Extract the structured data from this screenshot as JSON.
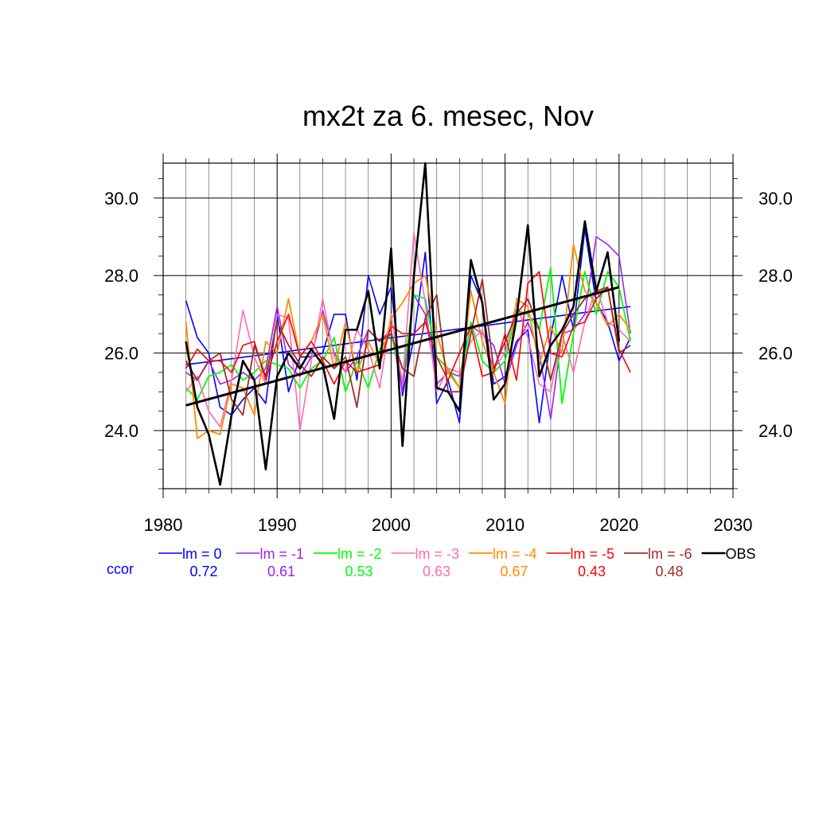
{
  "chart_data": {
    "type": "line",
    "title": "mx2t za 6. mesec, Nov",
    "xlim": [
      1980,
      2030
    ],
    "ylim": [
      22.5,
      30.9
    ],
    "x_ticks": [
      1980,
      1990,
      2000,
      2010,
      2020,
      2030
    ],
    "y_ticks": [
      24.0,
      26.0,
      28.0,
      30.0
    ],
    "y_tick_labels": [
      "24.0",
      "26.0",
      "28.0",
      "30.0"
    ],
    "x_tick_labels": [
      "1980",
      "1990",
      "2000",
      "2010",
      "2020",
      "2030"
    ],
    "x_minor_step": 2,
    "y_minor_step": 0.5,
    "grid": true,
    "legend_position": "bottom",
    "ccor_label": "ccor",
    "years": [
      1982,
      1983,
      1984,
      1985,
      1986,
      1987,
      1988,
      1989,
      1990,
      1991,
      1992,
      1993,
      1994,
      1995,
      1996,
      1997,
      1998,
      1999,
      2000,
      2001,
      2002,
      2003,
      2004,
      2005,
      2006,
      2007,
      2008,
      2009,
      2010,
      2011,
      2012,
      2013,
      2014,
      2015,
      2016,
      2017,
      2018,
      2019,
      2020,
      2021
    ],
    "series": [
      {
        "name": "lm = 0",
        "color": "#0000ff",
        "width": 1.6,
        "ccor": "0.72",
        "values": [
          27.35,
          26.4,
          26.0,
          24.6,
          24.4,
          24.8,
          25.1,
          24.7,
          27.0,
          25.0,
          25.9,
          25.9,
          26.0,
          27.0,
          27.0,
          25.3,
          28.0,
          27.0,
          27.7,
          24.9,
          26.4,
          28.6,
          24.7,
          25.3,
          24.2,
          28.0,
          27.3,
          25.2,
          25.4,
          26.3,
          26.6,
          24.2,
          26.4,
          28.0,
          26.6,
          29.2,
          27.3,
          26.8,
          25.8,
          26.4
        ],
        "trend": [
          25.7,
          27.2
        ]
      },
      {
        "name": "lm = -1",
        "color": "#a020f0",
        "width": 1.6,
        "ccor": "0.61",
        "values": [
          25.5,
          25.3,
          25.8,
          25.2,
          25.3,
          25.5,
          25.3,
          25.6,
          27.2,
          25.7,
          25.4,
          25.9,
          27.1,
          26.0,
          25.5,
          25.9,
          26.6,
          26.3,
          26.6,
          25.0,
          27.5,
          27.0,
          25.2,
          25.5,
          25.4,
          26.7,
          26.5,
          26.2,
          25.2,
          26.2,
          26.8,
          26.0,
          24.3,
          26.5,
          26.6,
          27.0,
          29.0,
          28.8,
          28.5,
          26.5
        ]
      },
      {
        "name": "lm = -2",
        "color": "#00ff00",
        "width": 1.8,
        "ccor": "0.53",
        "values": [
          25.1,
          24.8,
          25.4,
          25.5,
          25.7,
          25.3,
          25.5,
          25.8,
          25.7,
          25.6,
          25.1,
          25.6,
          25.8,
          26.4,
          25.0,
          25.8,
          25.1,
          26.1,
          26.5,
          25.3,
          27.5,
          27.4,
          25.9,
          25.6,
          25.1,
          26.8,
          25.8,
          25.5,
          25.8,
          27.1,
          27.0,
          26.6,
          28.2,
          24.7,
          26.5,
          28.1,
          27.0,
          28.1,
          27.7,
          26.3
        ]
      },
      {
        "name": "lm = -3",
        "color": "#ff69b4",
        "width": 1.6,
        "ccor": "0.63",
        "values": [
          25.0,
          25.4,
          24.5,
          24.1,
          25.3,
          27.1,
          25.9,
          25.2,
          27.0,
          26.9,
          24.0,
          25.8,
          27.4,
          25.9,
          25.5,
          26.6,
          26.1,
          25.1,
          27.0,
          25.2,
          29.1,
          27.3,
          25.0,
          25.6,
          25.5,
          26.3,
          26.6,
          25.6,
          26.0,
          27.3,
          26.4,
          25.2,
          25.0,
          26.5,
          25.5,
          26.8,
          27.7,
          26.8,
          26.6,
          26.3
        ]
      },
      {
        "name": "lm = -4",
        "color": "#ff8c00",
        "width": 1.8,
        "ccor": "0.67",
        "values": [
          26.8,
          23.8,
          24.0,
          23.9,
          25.2,
          25.1,
          24.4,
          26.3,
          26.0,
          27.4,
          25.9,
          26.3,
          27.0,
          25.6,
          26.8,
          25.5,
          26.3,
          25.7,
          26.9,
          27.3,
          27.8,
          28.0,
          26.5,
          25.5,
          25.1,
          27.6,
          26.3,
          25.5,
          24.7,
          27.4,
          27.2,
          25.7,
          26.7,
          26.0,
          28.8,
          27.6,
          27.3,
          26.7,
          27.0,
          26.6
        ]
      },
      {
        "name": "lm = -5",
        "color": "#ff0000",
        "width": 1.6,
        "ccor": "0.43",
        "values": [
          25.6,
          26.1,
          25.8,
          25.8,
          25.5,
          26.2,
          26.3,
          25.3,
          26.3,
          27.0,
          25.9,
          26.3,
          25.8,
          25.2,
          25.8,
          25.5,
          25.6,
          25.7,
          26.7,
          26.5,
          26.5,
          26.8,
          25.9,
          25.3,
          26.0,
          26.7,
          25.4,
          25.5,
          26.5,
          25.3,
          27.8,
          28.1,
          26.0,
          25.9,
          26.7,
          26.8,
          27.4,
          27.7,
          26.1,
          25.5
        ]
      },
      {
        "name": "lm = -6",
        "color": "#a52a2a",
        "width": 1.8,
        "ccor": "0.48",
        "values": [
          25.8,
          25.3,
          25.8,
          26.0,
          24.8,
          24.4,
          26.2,
          25.4,
          26.8,
          26.2,
          25.7,
          25.4,
          25.9,
          25.6,
          25.9,
          24.6,
          26.6,
          26.3,
          26.5,
          25.6,
          25.4,
          26.9,
          27.5,
          25.0,
          25.0,
          26.5,
          27.9,
          25.6,
          26.3,
          27.0,
          27.4,
          26.6,
          25.3,
          26.5,
          27.0,
          27.4,
          27.6,
          27.7,
          26.0,
          26.2
        ]
      },
      {
        "name": "OBS",
        "color": "#000000",
        "width": 2.6,
        "ccor": "",
        "values": [
          26.3,
          24.6,
          23.9,
          22.6,
          24.4,
          25.8,
          25.3,
          23.0,
          25.4,
          26.0,
          25.6,
          26.1,
          25.7,
          24.3,
          26.6,
          26.6,
          27.6,
          25.6,
          28.7,
          23.6,
          28.0,
          30.9,
          25.1,
          25.0,
          24.5,
          28.4,
          27.3,
          24.8,
          25.2,
          26.9,
          29.3,
          25.4,
          26.2,
          26.6,
          27.2,
          29.4,
          27.6,
          28.6,
          26.3
        ],
        "trend": [
          24.65,
          27.7
        ]
      }
    ]
  }
}
